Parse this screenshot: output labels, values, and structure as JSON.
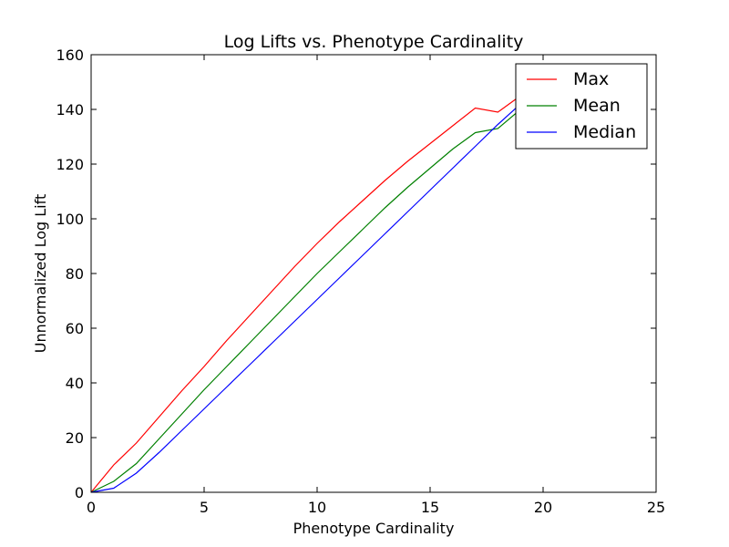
{
  "chart_data": {
    "type": "line",
    "title": "Log Lifts vs. Phenotype Cardinality",
    "xlabel": "Phenotype Cardinality",
    "ylabel": "Unnormalized Log Lift",
    "xlim": [
      0,
      25
    ],
    "ylim": [
      0,
      160
    ],
    "xticks": [
      0,
      5,
      10,
      15,
      20,
      25
    ],
    "yticks": [
      0,
      20,
      40,
      60,
      80,
      100,
      120,
      140,
      160
    ],
    "grid": false,
    "legend_position": "top-right",
    "x": [
      0,
      1,
      2,
      3,
      4,
      5,
      6,
      7,
      8,
      9,
      10,
      11,
      12,
      13,
      14,
      15,
      16,
      17,
      18,
      19,
      20
    ],
    "series": [
      {
        "name": "Max",
        "color": "#ff0000",
        "values": [
          0,
          10,
          18,
          27.5,
          37,
          46,
          55.5,
          64.5,
          73.5,
          82.5,
          91,
          99,
          106.5,
          114,
          121,
          127.5,
          134,
          140.5,
          139,
          145,
          145
        ]
      },
      {
        "name": "Mean",
        "color": "#008000",
        "values": [
          0,
          4,
          10.5,
          19.5,
          28.5,
          37.5,
          46,
          54.5,
          63,
          71.5,
          80,
          88,
          96,
          104,
          111.5,
          118.5,
          125.5,
          131.5,
          133,
          140,
          141
        ]
      },
      {
        "name": "Median",
        "color": "#0000ff",
        "values": [
          0,
          1.5,
          7,
          14.5,
          22.5,
          30.5,
          38.5,
          46.5,
          54.5,
          62.5,
          70.5,
          78.5,
          86.5,
          94.5,
          102.5,
          110.5,
          118.5,
          126.5,
          134.5,
          142,
          145
        ]
      }
    ]
  }
}
